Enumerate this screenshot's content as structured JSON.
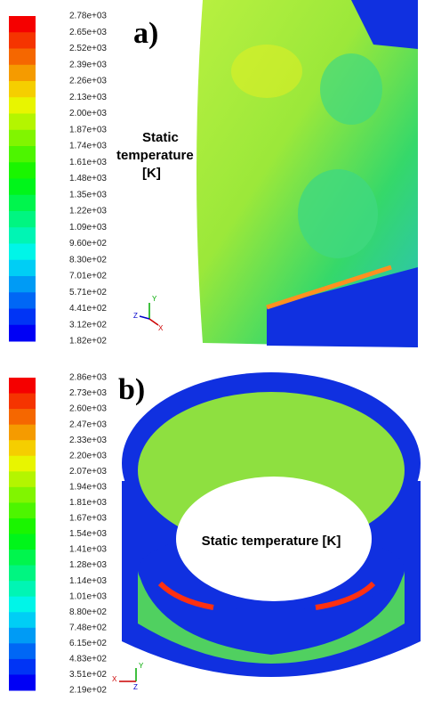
{
  "panels": [
    {
      "label": "a)",
      "annotation": [
        "Static",
        "temperature",
        "[K]"
      ],
      "colorbar": {
        "labels": [
          "2.78e+03",
          "2.65e+03",
          "2.52e+03",
          "2.39e+03",
          "2.26e+03",
          "2.13e+03",
          "2.00e+03",
          "1.87e+03",
          "1.74e+03",
          "1.61e+03",
          "1.48e+03",
          "1.35e+03",
          "1.22e+03",
          "1.09e+03",
          "9.60e+02",
          "8.30e+02",
          "7.01e+02",
          "5.71e+02",
          "4.41e+02",
          "3.12e+02",
          "1.82e+02"
        ]
      },
      "axes": {
        "y": "Y",
        "z": "Z",
        "x": "X"
      }
    },
    {
      "label": "b)",
      "annotation": "Static temperature [K]",
      "colorbar": {
        "labels": [
          "2.86e+03",
          "2.73e+03",
          "2.60e+03",
          "2.47e+03",
          "2.33e+03",
          "2.20e+03",
          "2.07e+03",
          "1.94e+03",
          "1.81e+03",
          "1.67e+03",
          "1.54e+03",
          "1.41e+03",
          "1.28e+03",
          "1.14e+03",
          "1.01e+03",
          "8.80e+02",
          "7.48e+02",
          "6.15e+02",
          "4.83e+02",
          "3.51e+02",
          "2.19e+02"
        ]
      },
      "axes": {
        "y": "Y",
        "x": "X",
        "z": "Z"
      }
    }
  ]
}
